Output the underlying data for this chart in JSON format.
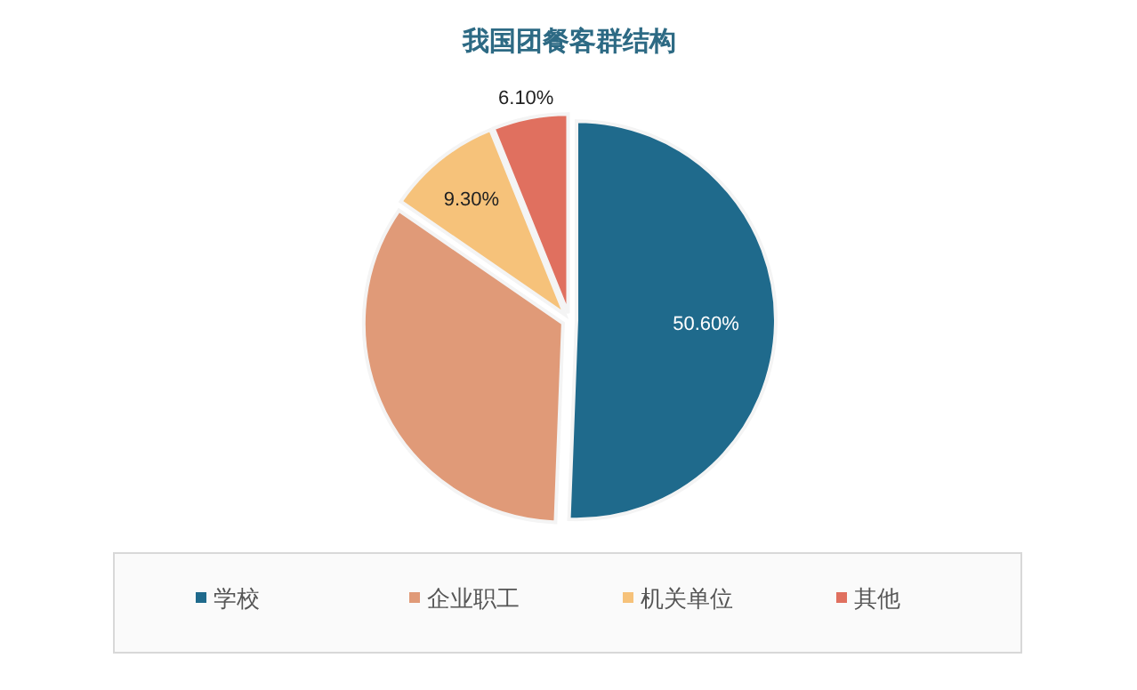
{
  "chart_data": {
    "type": "pie",
    "title": "我国团餐客群结构",
    "categories": [
      "学校",
      "企业职工",
      "机关单位",
      "其他"
    ],
    "values": [
      50.6,
      34.0,
      9.3,
      6.1
    ],
    "colors": [
      "#1f6a8c",
      "#e09a78",
      "#f6c27a",
      "#e0705f"
    ],
    "value_labels": [
      "50.60%",
      null,
      "9.30%",
      "6.10%"
    ],
    "legend": "bottom"
  }
}
